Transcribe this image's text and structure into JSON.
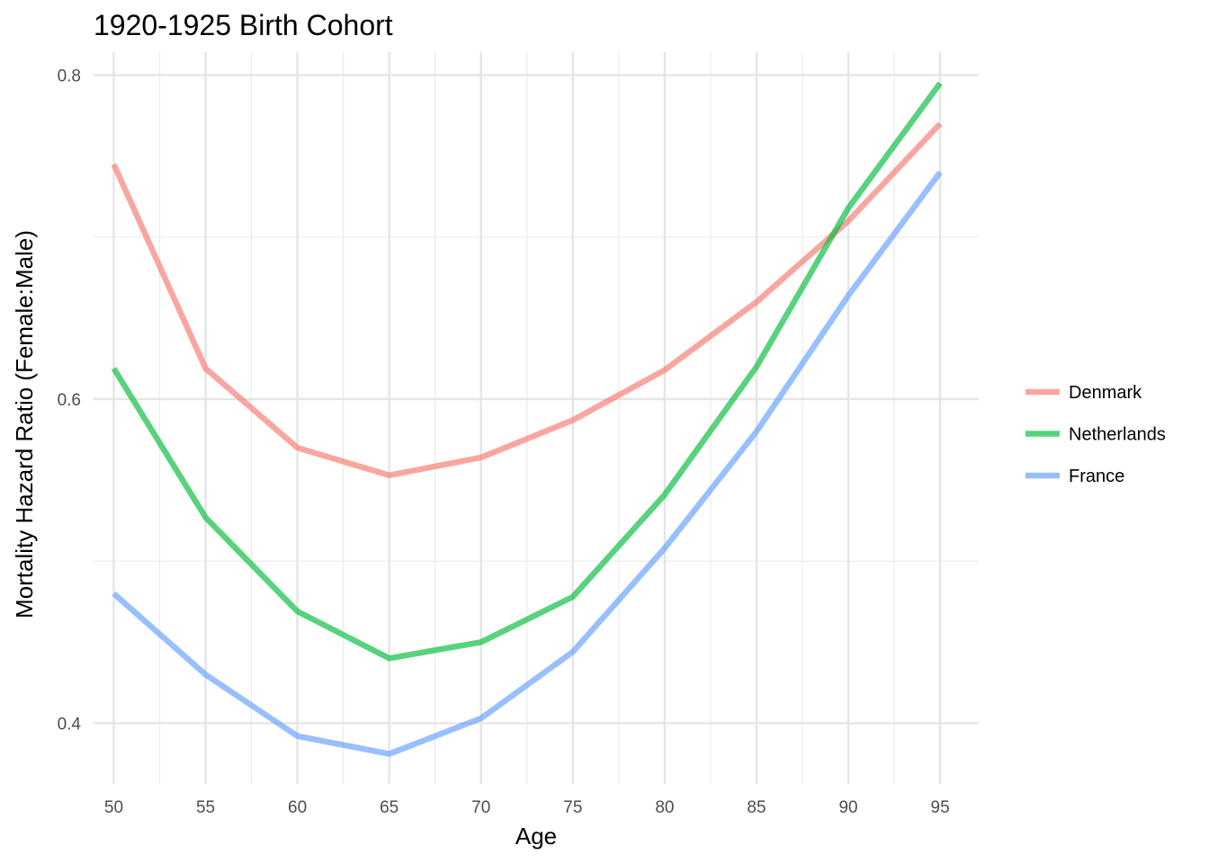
{
  "chart_data": {
    "type": "line",
    "title": "1920-1925 Birth Cohort",
    "xlabel": "Age",
    "ylabel": "Mortality Hazard Ratio (Female:Male)",
    "x": [
      50,
      55,
      60,
      65,
      70,
      75,
      80,
      85,
      90,
      95
    ],
    "xticks": [
      "50",
      "55",
      "60",
      "65",
      "70",
      "75",
      "80",
      "85",
      "90",
      "95"
    ],
    "yticks": [
      "0.4",
      "0.6",
      "0.8"
    ],
    "xlim": [
      48.9,
      97.1
    ],
    "ylim": [
      0.3625,
      0.8142
    ],
    "grid": true,
    "legend_position": "right",
    "series": [
      {
        "name": "Denmark",
        "color": "#F8766D",
        "values": [
          0.745,
          0.619,
          0.57,
          0.553,
          0.564,
          0.587,
          0.618,
          0.66,
          0.71,
          0.77
        ]
      },
      {
        "name": "Netherlands",
        "color": "#00BA38",
        "values": [
          0.619,
          0.527,
          0.469,
          0.44,
          0.45,
          0.478,
          0.541,
          0.62,
          0.718,
          0.795
        ]
      },
      {
        "name": "France",
        "color": "#619CFF",
        "values": [
          0.48,
          0.43,
          0.392,
          0.381,
          0.403,
          0.444,
          0.508,
          0.58,
          0.664,
          0.74
        ]
      }
    ]
  }
}
